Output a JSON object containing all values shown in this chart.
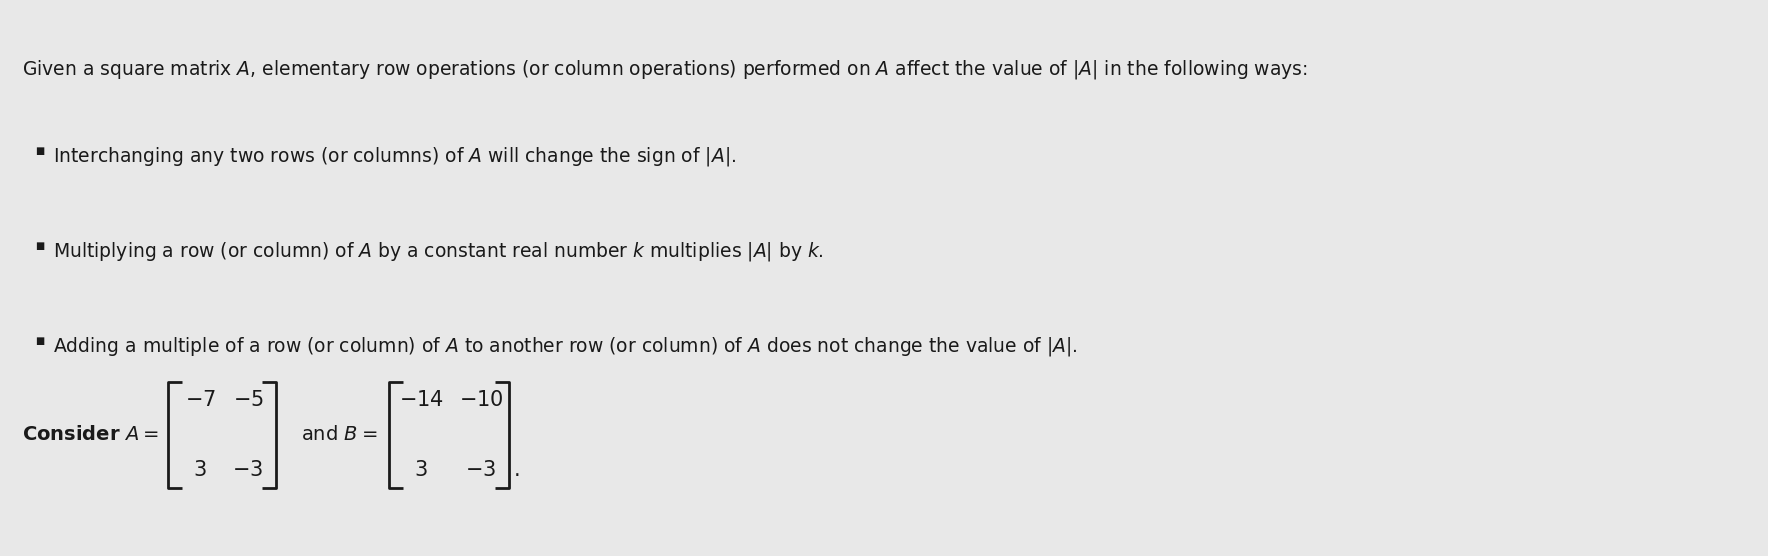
{
  "bg_color": "#e8e8e8",
  "text_color": "#1a1a1a",
  "title_text": "Given a square matrix $A$, elementary row operations (or column operations) performed on $A$ affect the value of $|A|$ in the following ways:",
  "bullet1": "Interchanging any two rows (or columns) of $A$ will change the sign of $|A|$.",
  "bullet2": "Multiplying a row (or column) of $A$ by a constant real number $k$ multiplies $|A|$ by $k$.",
  "bullet3": "Adding a multiple of a row (or column) of $A$ to another row (or column) of $A$ does not change the value of $|A|$.",
  "consider_text": "Consider $A=$",
  "and_B_text": "and $B=$",
  "font_size_title": 13.5,
  "font_size_bullet": 13.5,
  "font_size_matrix": 15,
  "font_size_consider": 14
}
